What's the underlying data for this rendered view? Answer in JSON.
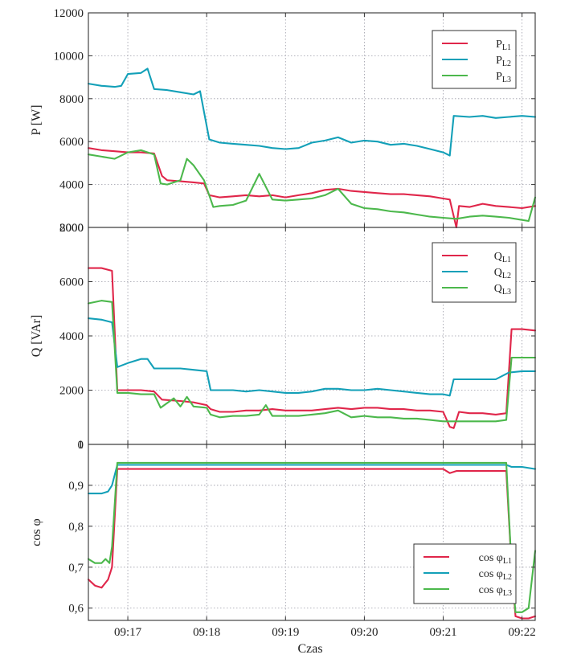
{
  "colors": {
    "L1": "#e0264a",
    "L2": "#13a0b8",
    "L3": "#4cb84c"
  },
  "xlabel": "Czas",
  "x_ticks": [
    "09:17",
    "09:18",
    "09:19",
    "09:20",
    "09:21",
    "09:22"
  ],
  "chart_data": [
    {
      "type": "line",
      "ylabel": "P [W]",
      "xlim": [
        "09:16:30",
        "09:22:10"
      ],
      "ylim": [
        2000,
        12000
      ],
      "yticks": [
        "2000",
        "4000",
        "6000",
        "8000",
        "10000",
        "12000"
      ],
      "grid": true,
      "legend_placement": "top-right",
      "series": [
        {
          "name": "P",
          "sub": "L1",
          "color_key": "L1",
          "x": [
            "09:16:30",
            "09:16:40",
            "09:16:50",
            "09:17:00",
            "09:17:10",
            "09:17:20",
            "09:17:26",
            "09:17:30",
            "09:17:40",
            "09:17:50",
            "09:17:58",
            "09:18:02",
            "09:18:10",
            "09:18:20",
            "09:18:30",
            "09:18:40",
            "09:18:50",
            "09:19:00",
            "09:19:10",
            "09:19:20",
            "09:19:30",
            "09:19:40",
            "09:19:50",
            "09:20:00",
            "09:20:10",
            "09:20:20",
            "09:20:30",
            "09:20:40",
            "09:20:50",
            "09:21:00",
            "09:21:05",
            "09:21:10",
            "09:21:12",
            "09:21:20",
            "09:21:30",
            "09:21:40",
            "09:21:50",
            "09:22:00",
            "09:22:10"
          ],
          "y": [
            5700,
            5600,
            5550,
            5500,
            5500,
            5450,
            4400,
            4200,
            4150,
            4100,
            4050,
            3500,
            3400,
            3450,
            3500,
            3450,
            3500,
            3400,
            3500,
            3600,
            3750,
            3800,
            3700,
            3650,
            3600,
            3550,
            3550,
            3500,
            3450,
            3350,
            3300,
            1800,
            3000,
            2950,
            3100,
            3000,
            2950,
            2900,
            3000
          ]
        },
        {
          "name": "P",
          "sub": "L2",
          "color_key": "L2",
          "x": [
            "09:16:30",
            "09:16:40",
            "09:16:50",
            "09:16:55",
            "09:17:00",
            "09:17:10",
            "09:17:15",
            "09:17:20",
            "09:17:30",
            "09:17:40",
            "09:17:50",
            "09:17:55",
            "09:18:02",
            "09:18:10",
            "09:18:20",
            "09:18:30",
            "09:18:40",
            "09:18:50",
            "09:19:00",
            "09:19:10",
            "09:19:20",
            "09:19:30",
            "09:19:40",
            "09:19:50",
            "09:20:00",
            "09:20:10",
            "09:20:20",
            "09:20:30",
            "09:20:40",
            "09:20:50",
            "09:21:00",
            "09:21:05",
            "09:21:08",
            "09:21:20",
            "09:21:30",
            "09:21:40",
            "09:21:50",
            "09:22:00",
            "09:22:10"
          ],
          "y": [
            8700,
            8600,
            8550,
            8600,
            9150,
            9200,
            9400,
            8450,
            8400,
            8300,
            8200,
            8350,
            6100,
            5950,
            5900,
            5850,
            5800,
            5700,
            5650,
            5700,
            5950,
            6050,
            6200,
            5950,
            6050,
            6000,
            5850,
            5900,
            5800,
            5650,
            5500,
            5350,
            7200,
            7150,
            7200,
            7100,
            7150,
            7200,
            7150
          ]
        },
        {
          "name": "P",
          "sub": "L3",
          "color_key": "L3",
          "x": [
            "09:16:30",
            "09:16:40",
            "09:16:50",
            "09:17:00",
            "09:17:10",
            "09:17:20",
            "09:17:25",
            "09:17:30",
            "09:17:40",
            "09:17:45",
            "09:17:50",
            "09:17:58",
            "09:18:05",
            "09:18:10",
            "09:18:20",
            "09:18:30",
            "09:18:40",
            "09:18:50",
            "09:19:00",
            "09:19:10",
            "09:19:20",
            "09:19:30",
            "09:19:40",
            "09:19:50",
            "09:20:00",
            "09:20:10",
            "09:20:20",
            "09:20:30",
            "09:20:40",
            "09:20:50",
            "09:21:00",
            "09:21:10",
            "09:21:20",
            "09:21:30",
            "09:21:40",
            "09:21:50",
            "09:22:00",
            "09:22:05",
            "09:22:10"
          ],
          "y": [
            5400,
            5300,
            5200,
            5500,
            5600,
            5400,
            4050,
            4000,
            4200,
            5200,
            4900,
            4200,
            2950,
            3000,
            3050,
            3250,
            4500,
            3300,
            3250,
            3300,
            3350,
            3500,
            3800,
            3100,
            2900,
            2850,
            2750,
            2700,
            2600,
            2500,
            2450,
            2400,
            2500,
            2550,
            2500,
            2450,
            2350,
            2300,
            3400
          ]
        }
      ]
    },
    {
      "type": "line",
      "ylabel": "Q [VAr]",
      "xlim": [
        "09:16:30",
        "09:22:10"
      ],
      "ylim": [
        0,
        8000
      ],
      "yticks": [
        "0",
        "2000",
        "4000",
        "6000",
        "8000"
      ],
      "grid": true,
      "legend_placement": "top-right",
      "series": [
        {
          "name": "Q",
          "sub": "L1",
          "color_key": "L1",
          "x": [
            "09:16:30",
            "09:16:40",
            "09:16:48",
            "09:16:52",
            "09:17:00",
            "09:17:10",
            "09:17:20",
            "09:17:26",
            "09:17:40",
            "09:17:50",
            "09:18:00",
            "09:18:03",
            "09:18:10",
            "09:18:20",
            "09:18:30",
            "09:18:40",
            "09:18:50",
            "09:19:00",
            "09:19:10",
            "09:19:20",
            "09:19:30",
            "09:19:40",
            "09:19:50",
            "09:20:00",
            "09:20:10",
            "09:20:20",
            "09:20:30",
            "09:20:40",
            "09:20:50",
            "09:21:00",
            "09:21:05",
            "09:21:08",
            "09:21:12",
            "09:21:20",
            "09:21:30",
            "09:21:40",
            "09:21:48",
            "09:21:52",
            "09:22:00",
            "09:22:10"
          ],
          "y": [
            6500,
            6500,
            6400,
            2000,
            2000,
            2000,
            1950,
            1650,
            1600,
            1550,
            1450,
            1300,
            1200,
            1200,
            1250,
            1250,
            1300,
            1250,
            1250,
            1250,
            1300,
            1350,
            1300,
            1350,
            1350,
            1300,
            1300,
            1250,
            1250,
            1200,
            650,
            600,
            1200,
            1150,
            1150,
            1100,
            1150,
            4250,
            4250,
            4200
          ]
        },
        {
          "name": "Q",
          "sub": "L2",
          "color_key": "L2",
          "x": [
            "09:16:30",
            "09:16:40",
            "09:16:48",
            "09:16:52",
            "09:17:00",
            "09:17:10",
            "09:17:15",
            "09:17:20",
            "09:17:30",
            "09:17:40",
            "09:17:50",
            "09:18:00",
            "09:18:03",
            "09:18:10",
            "09:18:20",
            "09:18:30",
            "09:18:40",
            "09:18:50",
            "09:19:00",
            "09:19:10",
            "09:19:20",
            "09:19:30",
            "09:19:40",
            "09:19:50",
            "09:20:00",
            "09:20:10",
            "09:20:20",
            "09:20:30",
            "09:20:40",
            "09:20:50",
            "09:21:00",
            "09:21:05",
            "09:21:08",
            "09:21:20",
            "09:21:30",
            "09:21:40",
            "09:21:50",
            "09:22:00",
            "09:22:10"
          ],
          "y": [
            4650,
            4600,
            4500,
            2850,
            3000,
            3150,
            3150,
            2800,
            2800,
            2800,
            2750,
            2700,
            2000,
            2000,
            2000,
            1950,
            2000,
            1950,
            1900,
            1900,
            1950,
            2050,
            2050,
            2000,
            2000,
            2050,
            2000,
            1950,
            1900,
            1850,
            1850,
            1800,
            2400,
            2400,
            2400,
            2400,
            2650,
            2700,
            2700
          ]
        },
        {
          "name": "Q",
          "sub": "L3",
          "color_key": "L3",
          "x": [
            "09:16:30",
            "09:16:40",
            "09:16:48",
            "09:16:52",
            "09:17:00",
            "09:17:10",
            "09:17:20",
            "09:17:25",
            "09:17:35",
            "09:17:40",
            "09:17:45",
            "09:17:50",
            "09:18:00",
            "09:18:03",
            "09:18:10",
            "09:18:20",
            "09:18:30",
            "09:18:40",
            "09:18:45",
            "09:18:50",
            "09:19:00",
            "09:19:10",
            "09:19:20",
            "09:19:30",
            "09:19:40",
            "09:19:50",
            "09:20:00",
            "09:20:10",
            "09:20:20",
            "09:20:30",
            "09:20:40",
            "09:20:50",
            "09:21:00",
            "09:21:10",
            "09:21:20",
            "09:21:30",
            "09:21:40",
            "09:21:48",
            "09:21:52",
            "09:22:00",
            "09:22:10"
          ],
          "y": [
            5200,
            5300,
            5250,
            1900,
            1900,
            1850,
            1850,
            1350,
            1700,
            1400,
            1750,
            1400,
            1350,
            1100,
            1000,
            1050,
            1050,
            1100,
            1450,
            1050,
            1050,
            1050,
            1100,
            1150,
            1250,
            1000,
            1050,
            1000,
            1000,
            950,
            950,
            900,
            850,
            850,
            850,
            850,
            850,
            900,
            3200,
            3200,
            3200
          ]
        }
      ]
    },
    {
      "type": "line",
      "ylabel": "cos φ",
      "xlim": [
        "09:16:30",
        "09:22:10"
      ],
      "ylim": [
        0.57,
        1.0
      ],
      "yticks": [
        "0,6",
        "0,7",
        "0,8",
        "0,9",
        "1"
      ],
      "grid": true,
      "legend_placement": "bottom-right",
      "series": [
        {
          "name": "cos φ",
          "sub": "L1",
          "color_key": "L1",
          "x": [
            "09:16:30",
            "09:16:35",
            "09:16:40",
            "09:16:45",
            "09:16:48",
            "09:16:52",
            "09:17:00",
            "09:17:30",
            "09:18:00",
            "09:18:30",
            "09:19:00",
            "09:19:30",
            "09:20:00",
            "09:20:30",
            "09:21:00",
            "09:21:05",
            "09:21:10",
            "09:21:20",
            "09:21:40",
            "09:21:48",
            "09:21:52",
            "09:21:55",
            "09:22:00",
            "09:22:05",
            "09:22:10"
          ],
          "y": [
            0.67,
            0.655,
            0.65,
            0.67,
            0.7,
            0.94,
            0.94,
            0.94,
            0.94,
            0.94,
            0.94,
            0.94,
            0.94,
            0.94,
            0.94,
            0.93,
            0.935,
            0.935,
            0.935,
            0.935,
            0.7,
            0.58,
            0.575,
            0.575,
            0.58
          ]
        },
        {
          "name": "cos φ",
          "sub": "L2",
          "color_key": "L2",
          "x": [
            "09:16:30",
            "09:16:40",
            "09:16:45",
            "09:16:48",
            "09:16:52",
            "09:17:00",
            "09:17:30",
            "09:18:00",
            "09:18:30",
            "09:19:00",
            "09:19:30",
            "09:20:00",
            "09:20:30",
            "09:21:00",
            "09:21:30",
            "09:21:48",
            "09:21:52",
            "09:22:00",
            "09:22:10"
          ],
          "y": [
            0.88,
            0.88,
            0.885,
            0.9,
            0.95,
            0.95,
            0.95,
            0.95,
            0.95,
            0.95,
            0.95,
            0.95,
            0.95,
            0.95,
            0.95,
            0.95,
            0.945,
            0.945,
            0.94
          ]
        },
        {
          "name": "cos φ",
          "sub": "L3",
          "color_key": "L3",
          "x": [
            "09:16:30",
            "09:16:35",
            "09:16:40",
            "09:16:43",
            "09:16:46",
            "09:16:48",
            "09:16:52",
            "09:17:00",
            "09:17:30",
            "09:18:00",
            "09:18:30",
            "09:19:00",
            "09:19:30",
            "09:20:00",
            "09:20:30",
            "09:21:00",
            "09:21:30",
            "09:21:48",
            "09:21:52",
            "09:21:55",
            "09:22:00",
            "09:22:05",
            "09:22:10"
          ],
          "y": [
            0.72,
            0.71,
            0.71,
            0.72,
            0.71,
            0.75,
            0.955,
            0.955,
            0.955,
            0.955,
            0.955,
            0.955,
            0.955,
            0.955,
            0.955,
            0.955,
            0.955,
            0.955,
            0.7,
            0.59,
            0.59,
            0.6,
            0.74
          ]
        }
      ]
    }
  ]
}
